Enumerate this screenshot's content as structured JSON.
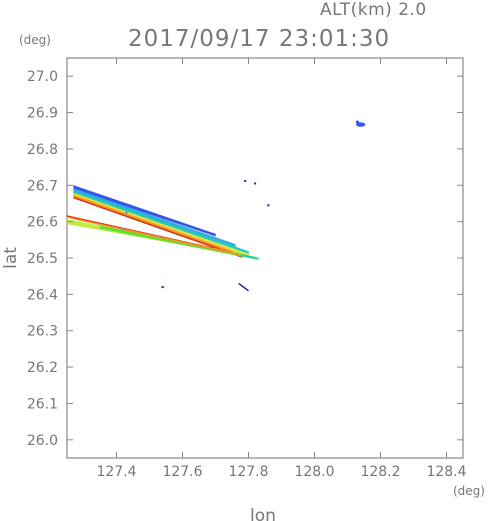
{
  "header": {
    "altitude_label": "ALT(km) 2.0",
    "timestamp": "2017/09/17 23:01:30"
  },
  "colors": {
    "axis": "#777777",
    "frame": "#888888",
    "blue": "#3355ee",
    "sky": "#33aadd",
    "teal": "#22ccbb",
    "green": "#66dd33",
    "lime": "#bbee44",
    "yellow": "#eedd33",
    "orange": "#ee9922",
    "red": "#dd3311",
    "navy": "#2222aa"
  },
  "chart_data": {
    "type": "scatter",
    "title": "2017/09/17 23:01:30",
    "subtitle": "ALT(km) 2.0",
    "xlabel": "lon",
    "ylabel": "lat",
    "xunit": "(deg)",
    "yunit": "(deg)",
    "xlim": [
      127.25,
      128.45
    ],
    "ylim": [
      25.95,
      27.05
    ],
    "xticks": [
      127.4,
      127.6,
      127.8,
      128.0,
      128.2,
      128.4
    ],
    "xtick_labels": [
      "127.4",
      "127.6",
      "127.8",
      "128.0",
      "128.2",
      "128.4"
    ],
    "yticks": [
      26.0,
      26.1,
      26.2,
      26.3,
      26.4,
      26.5,
      26.6,
      26.7,
      26.8,
      26.9,
      27.0
    ],
    "ytick_labels": [
      "26.0",
      "26.1",
      "26.2",
      "26.3",
      "26.4",
      "26.5",
      "26.6",
      "26.7",
      "26.8",
      "26.9",
      "27.0"
    ],
    "grid": false,
    "bands": [
      {
        "color_key": "blue",
        "start": [
          127.27,
          26.695
        ],
        "end": [
          127.7,
          26.563
        ],
        "width": 0.009
      },
      {
        "color_key": "sky",
        "start": [
          127.27,
          26.687
        ],
        "end": [
          127.76,
          26.535
        ],
        "width": 0.007
      },
      {
        "color_key": "teal",
        "start": [
          127.27,
          26.681
        ],
        "end": [
          127.8,
          26.515
        ],
        "width": 0.006
      },
      {
        "color_key": "yellow",
        "start": [
          127.27,
          26.676
        ],
        "end": [
          127.8,
          26.508
        ],
        "width": 0.004
      },
      {
        "color_key": "orange",
        "start": [
          127.27,
          26.671
        ],
        "end": [
          127.79,
          26.505
        ],
        "width": 0.004
      },
      {
        "color_key": "red",
        "start": [
          127.27,
          26.666
        ],
        "end": [
          127.78,
          26.503
        ],
        "width": 0.003
      },
      {
        "color_key": "lime",
        "start": [
          127.25,
          26.6
        ],
        "end": [
          127.78,
          26.51
        ],
        "width": 0.012
      },
      {
        "color_key": "green",
        "start": [
          127.35,
          26.585
        ],
        "end": [
          127.82,
          26.5
        ],
        "width": 0.007
      },
      {
        "color_key": "red",
        "start": [
          127.25,
          26.615
        ],
        "end": [
          127.75,
          26.515
        ],
        "width": 0.003
      },
      {
        "color_key": "orange",
        "start": [
          127.26,
          26.61
        ],
        "end": [
          127.77,
          26.51
        ],
        "width": 0.003
      },
      {
        "color_key": "teal",
        "start": [
          127.78,
          26.508
        ],
        "end": [
          127.83,
          26.498
        ],
        "width": 0.004
      }
    ],
    "blobs": [
      {
        "color_key": "blue",
        "lon": 128.14,
        "lat": 26.867,
        "rx": 0.014,
        "ry": 0.006
      },
      {
        "color_key": "blue",
        "lon": 128.13,
        "lat": 26.874,
        "rx": 0.005,
        "ry": 0.004
      },
      {
        "color_key": "blue",
        "lon": 127.54,
        "lat": 26.42,
        "rx": 0.005,
        "ry": 0.003
      }
    ],
    "segments": [
      {
        "color_key": "navy",
        "start": [
          127.77,
          26.43
        ],
        "end": [
          127.8,
          26.41
        ],
        "width": 1.5
      }
    ],
    "dots": [
      {
        "color_key": "navy",
        "lon": 127.79,
        "lat": 26.712
      },
      {
        "color_key": "navy",
        "lon": 127.82,
        "lat": 26.705
      },
      {
        "color_key": "navy",
        "lon": 127.86,
        "lat": 26.645
      },
      {
        "color_key": "sky",
        "lon": 127.43,
        "lat": 26.625
      },
      {
        "color_key": "teal",
        "lon": 127.42,
        "lat": 26.578
      }
    ]
  }
}
